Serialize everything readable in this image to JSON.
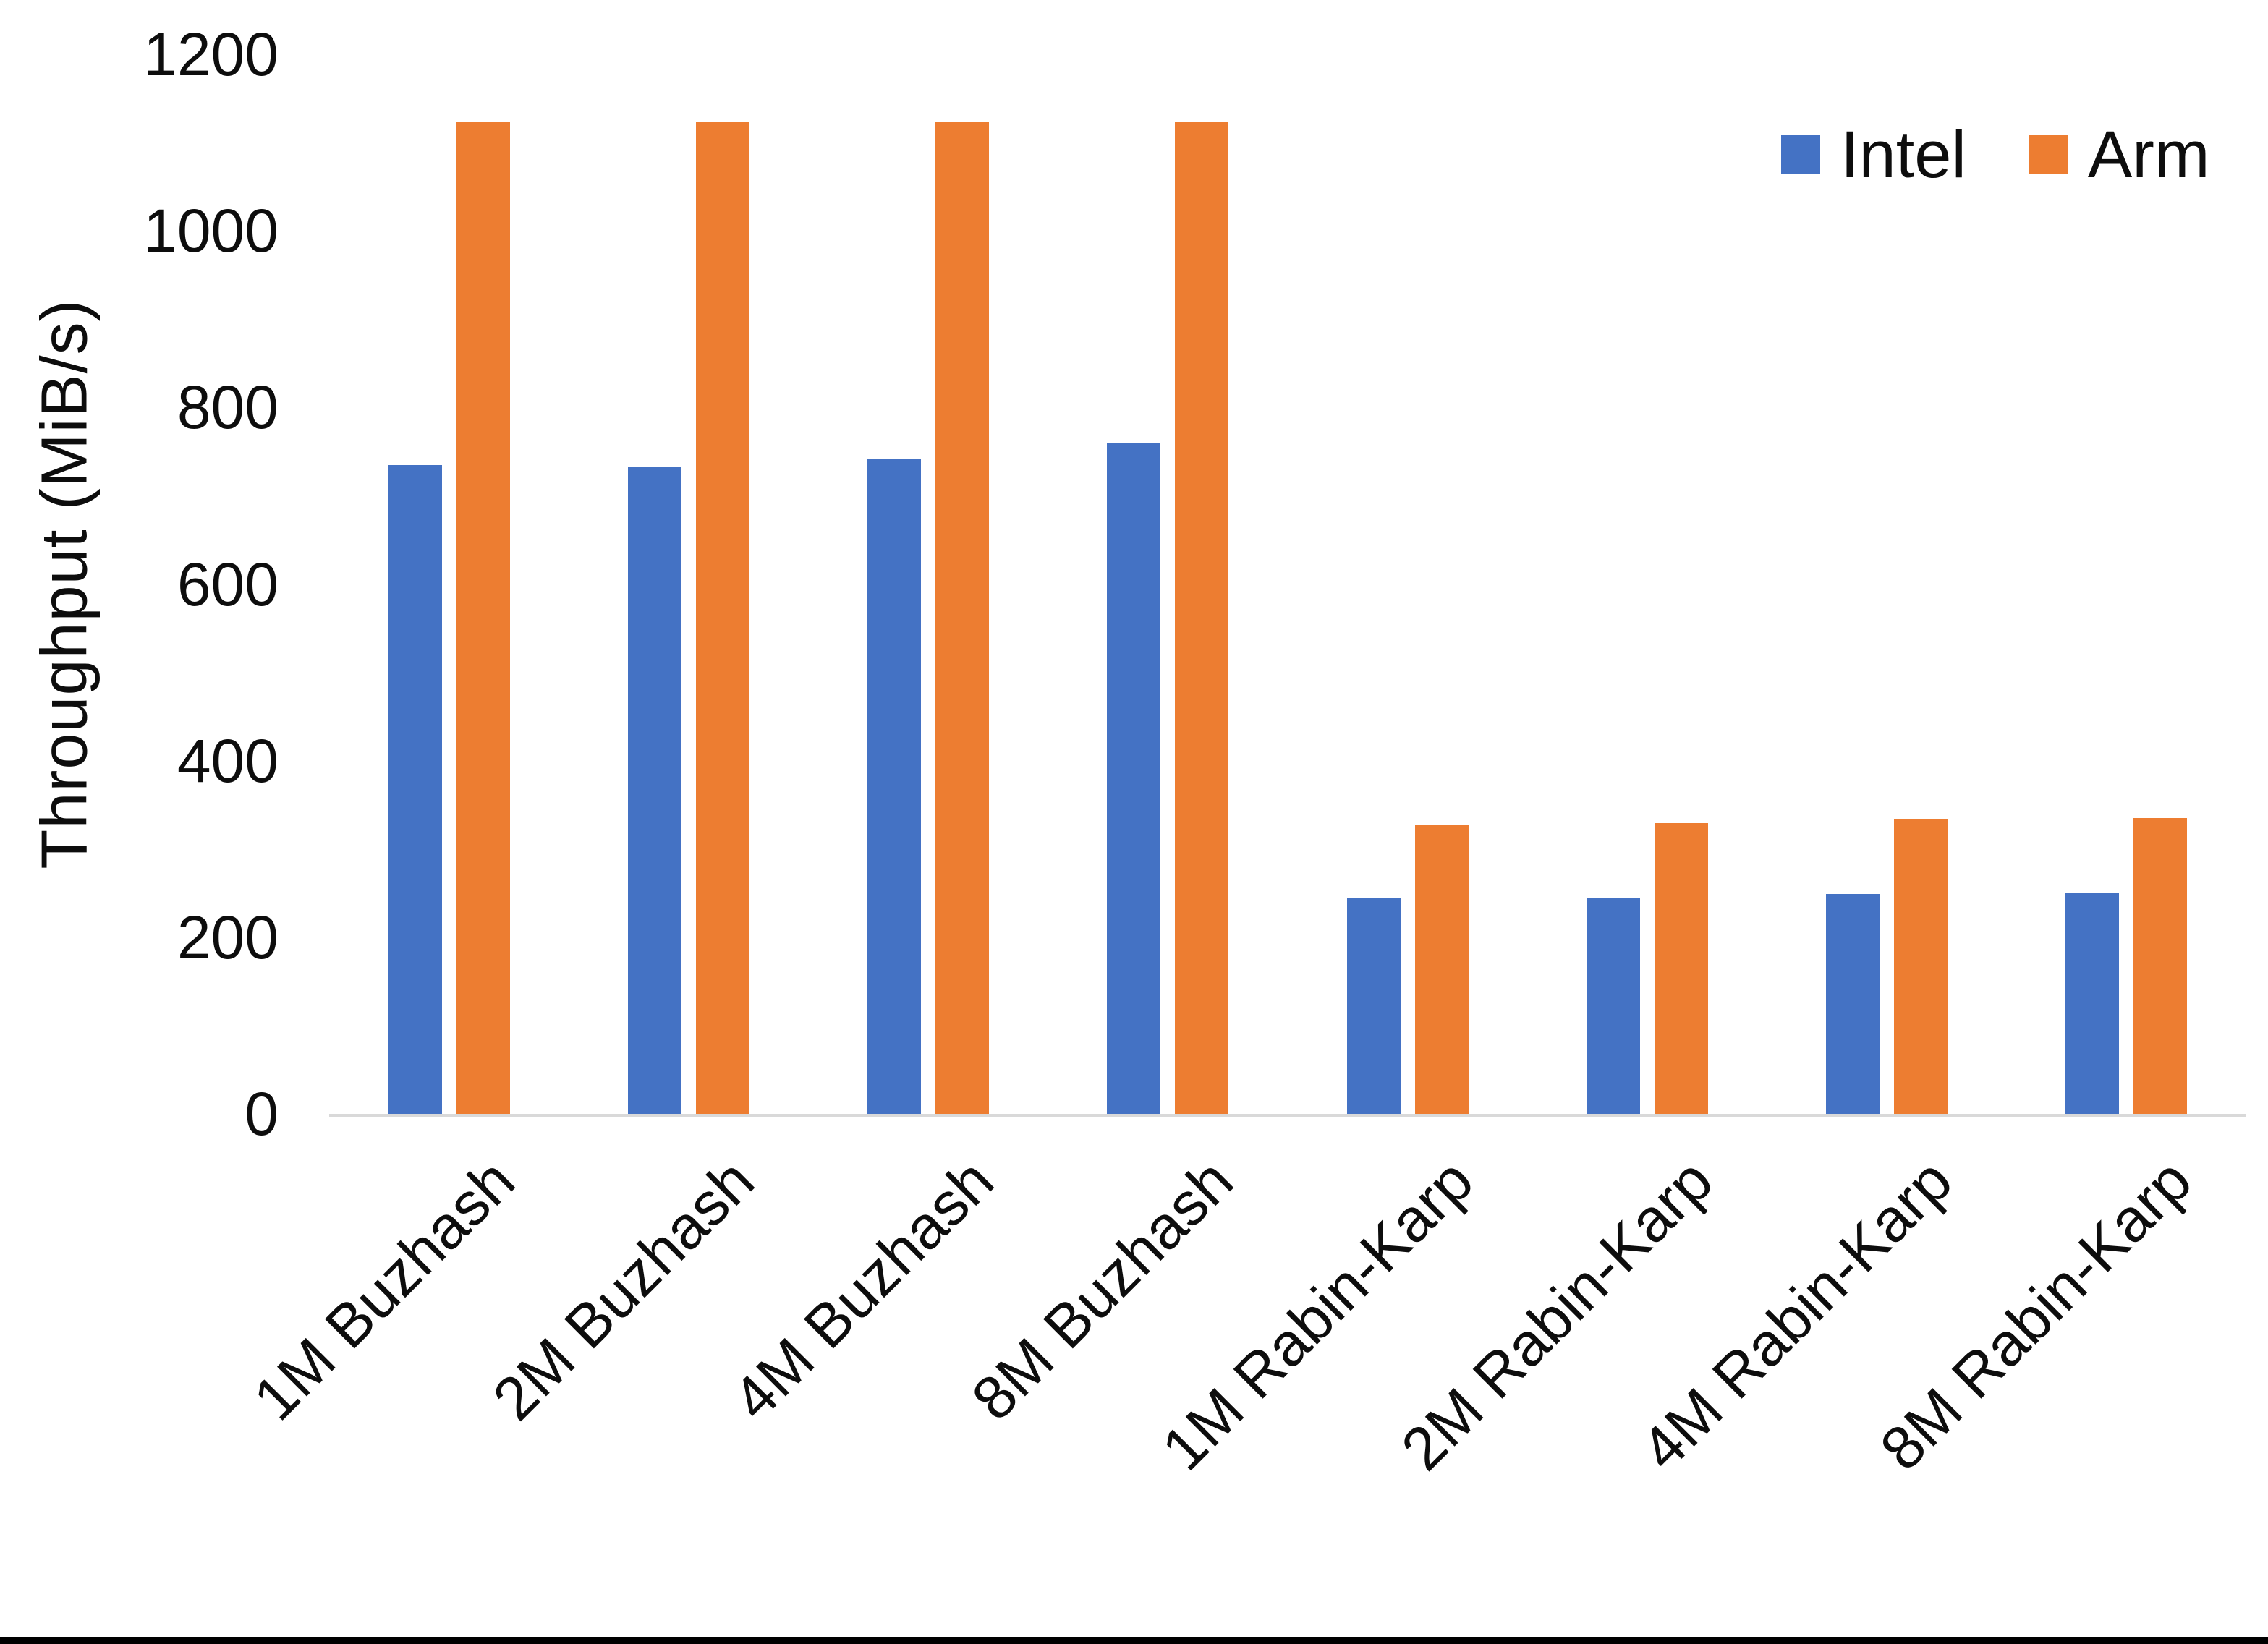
{
  "chart_data": {
    "type": "bar",
    "title": "",
    "xlabel": "",
    "ylabel": "Throughput (MiB/s)",
    "ylim": [
      0,
      1200
    ],
    "yticks": [
      0,
      200,
      400,
      600,
      800,
      1000,
      1200
    ],
    "grid": false,
    "legend_position": "top-right",
    "categories": [
      "1M Buzhash",
      "2M Buzhash",
      "4M Buzhash",
      "8M Buzhash",
      "1M Rabin-Karp",
      "2M Rabin-Karp",
      "4M Rabin-Karp",
      "8M Rabin-Karp"
    ],
    "series": [
      {
        "name": "Intel",
        "color": "#4472C4",
        "values": [
          735,
          733,
          742,
          759,
          245,
          245,
          249,
          250
        ]
      },
      {
        "name": "Arm",
        "color": "#ED7D31",
        "values": [
          1123,
          1123,
          1123,
          1123,
          327,
          329,
          333,
          335
        ]
      }
    ],
    "axis_line_color": "#d9d9d9",
    "bottom_edge_color": "#000000"
  }
}
